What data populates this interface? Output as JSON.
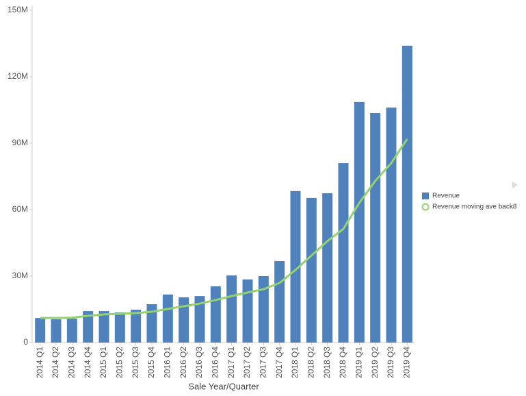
{
  "chart_data": {
    "type": "combo",
    "x_label": "Sale Year/Quarter",
    "categories": [
      "2014 Q1",
      "2014 Q2",
      "2014 Q3",
      "2014 Q4",
      "2015 Q1",
      "2015 Q2",
      "2015 Q3",
      "2015 Q4",
      "2016 Q1",
      "2016 Q2",
      "2016 Q3",
      "2016 Q4",
      "2017 Q1",
      "2017 Q2",
      "2017 Q3",
      "2017 Q4",
      "2018 Q1",
      "2018 Q2",
      "2018 Q3",
      "2018 Q4",
      "2019 Q1",
      "2019 Q2",
      "2019 Q3",
      "2019 Q4"
    ],
    "series": [
      {
        "name": "Revenue",
        "type": "bar",
        "color": "#4f81bd",
        "values": [
          11.1,
          10.5,
          10.8,
          14.2,
          14.2,
          13.6,
          14.8,
          17.3,
          21.7,
          20.4,
          21,
          25.4,
          30.3,
          28.5,
          30,
          36.8,
          68.4,
          65.3,
          67.4,
          81,
          108.6,
          103.6,
          106.1,
          134
        ]
      },
      {
        "name": "Revenue moving ave back8",
        "type": "line",
        "color": "#92d36e",
        "values": [
          11.1,
          11.1,
          11.2,
          12.1,
          12.7,
          13,
          13.3,
          13.9,
          15.2,
          16.4,
          17.6,
          19.2,
          21,
          22.6,
          24.1,
          26.9,
          32.8,
          39.3,
          45.8,
          51.3,
          63.1,
          73,
          81,
          91.9
        ]
      }
    ],
    "ylim": [
      0,
      150
    ],
    "yticks": [
      0,
      {
        "value": 30,
        "label": "30M"
      },
      {
        "value": 60,
        "label": "60M"
      },
      {
        "value": 90,
        "label": "90M"
      },
      {
        "value": 120,
        "label": "120M"
      },
      {
        "value": 150,
        "label": "150M"
      }
    ],
    "grid": false
  }
}
